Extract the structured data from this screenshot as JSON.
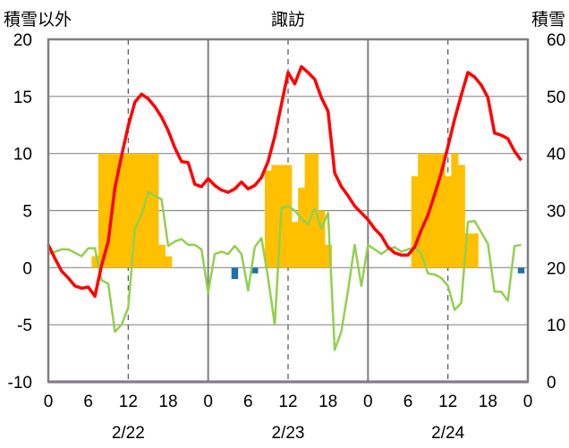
{
  "chart_data": {
    "type": "bar+line",
    "title": "諏訪",
    "left_axis_label": "積雪以外",
    "right_axis_label": "積雪",
    "ylim_left": [
      -10,
      20
    ],
    "ylim_right": [
      0,
      60
    ],
    "yticks_left": [
      20,
      15,
      10,
      5,
      0,
      -5,
      -10
    ],
    "yticks_right": [
      60,
      50,
      40,
      30,
      20,
      10,
      0
    ],
    "hours_total": 72,
    "xtick_hours": [
      0,
      6,
      12,
      18,
      24,
      30,
      36,
      42,
      48,
      54,
      60,
      66,
      72
    ],
    "xtick_labels": [
      "0",
      "6",
      "12",
      "18",
      "0",
      "6",
      "12",
      "18",
      "0",
      "6",
      "12",
      "18",
      "0"
    ],
    "date_labels": [
      {
        "hour": 12,
        "label": "2/22"
      },
      {
        "hour": 36,
        "label": "2/23"
      },
      {
        "hour": 60,
        "label": "2/24"
      }
    ],
    "day_separators": [
      24,
      48
    ],
    "dashed_gridlines": [
      12,
      36,
      60
    ],
    "snow_depth": {
      "color": "#FFC000",
      "hours": [
        7,
        8,
        9,
        10,
        11,
        12,
        13,
        14,
        15,
        16,
        17,
        18,
        33,
        34,
        35,
        36,
        37,
        38,
        39,
        40,
        41,
        42,
        55,
        56,
        57,
        58,
        59,
        60,
        61,
        62,
        63,
        64
      ],
      "values": [
        22,
        40,
        40,
        40,
        40,
        40,
        40,
        40,
        40,
        40,
        24,
        22,
        37,
        38,
        38,
        38,
        28,
        34,
        40,
        40,
        30,
        24,
        36,
        40,
        40,
        40,
        40,
        36,
        40,
        38,
        26,
        26
      ]
    },
    "precipitation": {
      "color": "#1F6FB0",
      "hours": [
        28,
        31,
        71
      ],
      "values": [
        -1.0,
        -0.5,
        -0.5
      ]
    },
    "temperature": {
      "color": "#FF0000",
      "hours": [
        0,
        1,
        2,
        3,
        4,
        5,
        6,
        7,
        8,
        9,
        10,
        11,
        12,
        13,
        14,
        15,
        16,
        17,
        18,
        19,
        20,
        21,
        22,
        23,
        24,
        25,
        26,
        27,
        28,
        29,
        30,
        31,
        32,
        33,
        34,
        35,
        36,
        37,
        38,
        39,
        40,
        41,
        42,
        43,
        44,
        45,
        46,
        47,
        48,
        49,
        50,
        51,
        52,
        53,
        54,
        55,
        56,
        57,
        58,
        59,
        60,
        61,
        62,
        63,
        64,
        65,
        66,
        67,
        68,
        69,
        70,
        71
      ],
      "values": [
        2.0,
        0.8,
        -0.3,
        -0.9,
        -1.6,
        -1.8,
        -1.7,
        -2.5,
        0.2,
        2.3,
        7.0,
        9.8,
        12.4,
        14.5,
        15.2,
        14.8,
        14.1,
        13.2,
        12.0,
        10.5,
        9.3,
        9.2,
        7.3,
        7.1,
        7.8,
        7.2,
        6.8,
        6.6,
        6.9,
        7.5,
        6.9,
        7.2,
        7.9,
        9.3,
        11.5,
        14.3,
        17.1,
        16.1,
        17.6,
        17.1,
        16.5,
        14.9,
        13.7,
        8.3,
        7.1,
        6.3,
        5.4,
        4.8,
        4.2,
        3.4,
        2.8,
        1.8,
        1.3,
        1.1,
        1.1,
        1.8,
        3.3,
        4.6,
        6.4,
        8.3,
        10.6,
        13.0,
        15.1,
        17.1,
        16.7,
        16.0,
        14.9,
        11.8,
        11.6,
        11.3,
        10.2,
        9.4
      ]
    },
    "humidity": {
      "color": "#92D050",
      "hours": [
        0,
        1,
        2,
        3,
        4,
        5,
        6,
        7,
        8,
        9,
        10,
        11,
        12,
        13,
        14,
        15,
        16,
        17,
        18,
        19,
        20,
        21,
        22,
        23,
        24,
        25,
        26,
        27,
        28,
        29,
        30,
        31,
        32,
        33,
        34,
        35,
        36,
        37,
        38,
        39,
        40,
        41,
        42,
        43,
        44,
        45,
        46,
        47,
        48,
        49,
        50,
        51,
        52,
        53,
        54,
        55,
        56,
        57,
        58,
        59,
        60,
        61,
        62,
        63,
        64,
        65,
        66,
        67,
        68,
        69,
        70,
        71
      ],
      "values": [
        1.2,
        1.4,
        1.6,
        1.6,
        1.3,
        1.0,
        1.7,
        1.7,
        -1.1,
        -1.4,
        -5.6,
        -5.0,
        -3.5,
        3.4,
        4.6,
        6.6,
        6.3,
        6.0,
        1.9,
        2.3,
        2.5,
        2.0,
        2.0,
        1.6,
        -2.2,
        1.2,
        1.4,
        1.2,
        1.9,
        1.2,
        -2.0,
        1.8,
        2.6,
        -0.9,
        -5.0,
        5.2,
        5.4,
        5.0,
        4.3,
        3.8,
        5.2,
        3.4,
        4.8,
        -7.2,
        -5.6,
        -2.0,
        2.0,
        -1.6,
        2.0,
        1.6,
        1.2,
        1.6,
        1.8,
        1.4,
        1.6,
        1.8,
        1.2,
        -0.5,
        -0.6,
        -0.9,
        -1.6,
        -3.7,
        -3.1,
        4.0,
        4.1,
        3.1,
        2.1,
        -2.1,
        -2.1,
        -2.9,
        1.9,
        2.0
      ]
    },
    "baseline_series": {
      "color": "#7030A0",
      "value": -10
    }
  }
}
